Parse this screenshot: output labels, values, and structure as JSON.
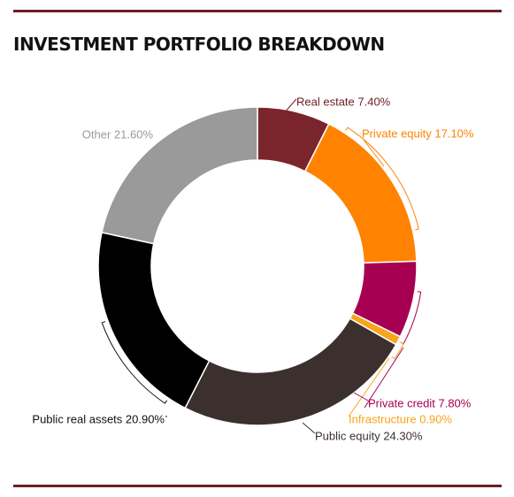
{
  "title": "INVESTMENT PORTFOLIO BREAKDOWN",
  "chart_data": {
    "type": "pie",
    "title": "INVESTMENT PORTFOLIO BREAKDOWN",
    "donut": true,
    "legend": "none",
    "slices": [
      {
        "label": "Real estate",
        "value": 7.4,
        "value_label": "7.40%",
        "color": "#7a242b",
        "label_color": "#6b1f24"
      },
      {
        "label": "Private equity",
        "value": 17.1,
        "value_label": "17.10%",
        "color": "#ff8200",
        "label_color": "#ff8200"
      },
      {
        "label": "Private credit",
        "value": 7.8,
        "value_label": "7.80%",
        "color": "#a70052",
        "label_color": "#a70052"
      },
      {
        "label": "Infrastructure",
        "value": 0.9,
        "value_label": "0.90%",
        "color": "#f7a51c",
        "label_color": "#f7a51c"
      },
      {
        "label": "Public equity",
        "value": 24.3,
        "value_label": "24.30%",
        "color": "#3b302d",
        "label_color": "#3b302d"
      },
      {
        "label": "Public real assets",
        "value": 20.9,
        "value_label": "20.90%",
        "color": "#000000",
        "label_color": "#111111"
      },
      {
        "label": "Other",
        "value": 21.6,
        "value_label": "21.60%",
        "color": "#9a9a9a",
        "label_color": "#9a9a9a"
      }
    ]
  }
}
